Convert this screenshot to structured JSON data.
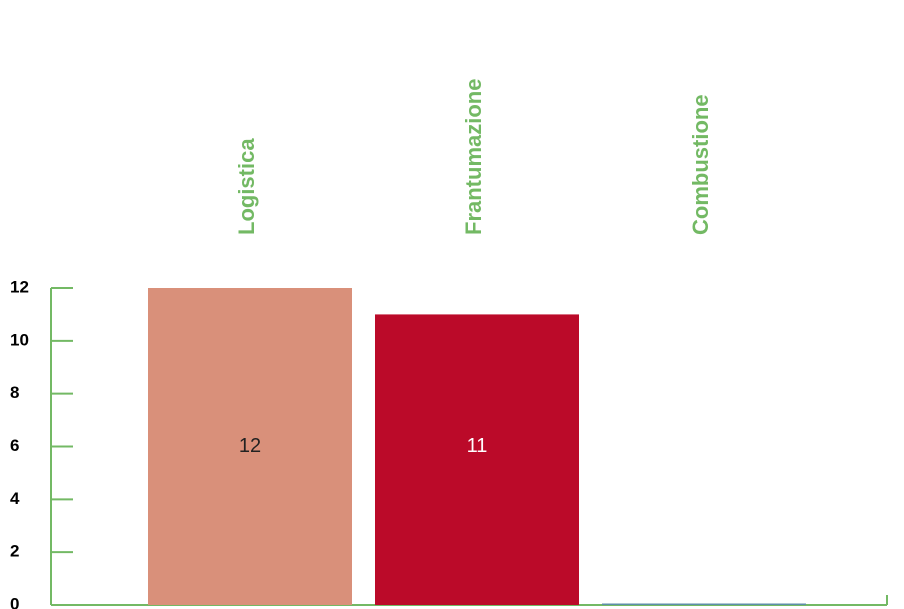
{
  "chart_data": {
    "type": "bar",
    "categories": [
      "Logistica",
      "Frantumazione",
      "Combustione"
    ],
    "values": [
      12,
      11,
      0
    ],
    "data_labels": [
      "12",
      "11",
      ""
    ],
    "bar_colors": [
      "#d9907a",
      "#bb0a29",
      "#5d8fa8"
    ],
    "label_colors": [
      "#222222",
      "#ffffff",
      "#ffffff"
    ],
    "axis_color": "#73b964",
    "category_label_color": "#73b964",
    "category_label_orientation": "vertical",
    "category_label_position": "top",
    "yticks": [
      "0",
      "2",
      "4",
      "6",
      "8",
      "10",
      "12"
    ],
    "ylim": [
      0,
      12
    ],
    "grid": false,
    "title": "",
    "xlabel": "",
    "ylabel": ""
  }
}
